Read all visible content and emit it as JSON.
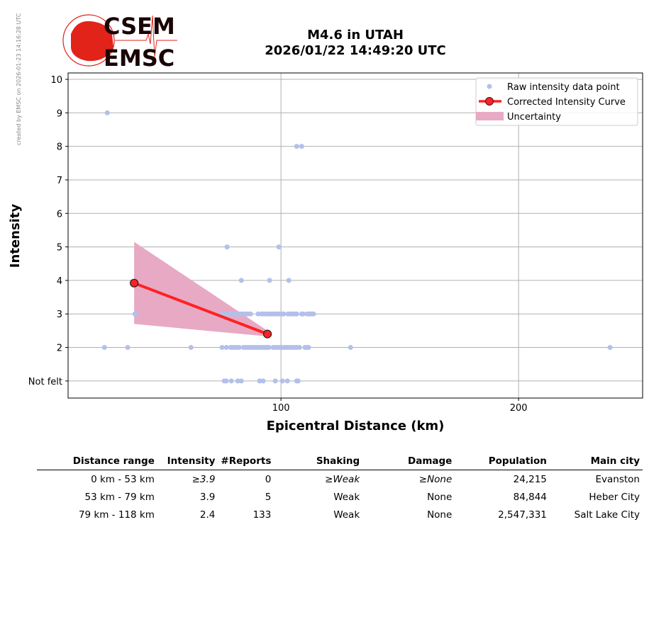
{
  "credit": "created by EMSC on 2026-01-23 14:16:28 UTC",
  "logo": {
    "top": "CSEM",
    "bottom": "EMSC"
  },
  "title": {
    "line1": "M4.6 in UTAH",
    "line2": "2026/01/22 14:49:20 UTC"
  },
  "chart_data": {
    "type": "scatter",
    "xlabel": "Epicentral Distance (km)",
    "ylabel": "Intensity",
    "xlim": [
      10.4,
      252.2
    ],
    "ylim": [
      0.49,
      10.19
    ],
    "xticks": [
      100,
      200
    ],
    "yticks": [
      {
        "v": 1,
        "label": "Not felt"
      },
      {
        "v": 2,
        "label": "2"
      },
      {
        "v": 3,
        "label": "3"
      },
      {
        "v": 4,
        "label": "4"
      },
      {
        "v": 5,
        "label": "5"
      },
      {
        "v": 6,
        "label": "6"
      },
      {
        "v": 7,
        "label": "7"
      },
      {
        "v": 8,
        "label": "8"
      },
      {
        "v": 9,
        "label": "9"
      },
      {
        "v": 10,
        "label": "10"
      }
    ],
    "grid": true,
    "legend_position": "top-right",
    "legend": [
      "Raw intensity data point",
      "Corrected Intensity Curve",
      "Uncertainty"
    ],
    "colors": {
      "raw": "#b3c0ea",
      "curve": "#ff2222",
      "uncertainty": "#e8a9c4"
    },
    "raw_points": [
      {
        "i": 9,
        "x": [
          26.9
        ]
      },
      {
        "i": 8,
        "x": [
          106.6,
          108.7
        ]
      },
      {
        "i": 5,
        "x": [
          77.3,
          99.1
        ]
      },
      {
        "i": 4,
        "x": [
          83.3,
          95.2,
          103.3
        ]
      },
      {
        "i": 3,
        "x": [
          38.5,
          39.1,
          75.2,
          76.1,
          77.0,
          77.9,
          78.8,
          79.7,
          80.6,
          81.5,
          82.4,
          83.3,
          84.2,
          85.1,
          86.0,
          87.2,
          90.4,
          91.9,
          92.8,
          94.0,
          94.9,
          95.8,
          96.7,
          97.6,
          98.5,
          99.4,
          100.3,
          101.2,
          103.0,
          103.9,
          104.8,
          105.7,
          106.6,
          108.7,
          109.3,
          111.0,
          111.9,
          112.8,
          113.7
        ]
      },
      {
        "i": 2,
        "x": [
          25.7,
          35.5,
          62.1,
          75.2,
          77.0,
          78.8,
          79.7,
          80.6,
          81.5,
          82.4,
          84.2,
          85.1,
          86.0,
          86.9,
          87.8,
          88.7,
          89.6,
          90.4,
          91.3,
          92.2,
          93.1,
          94.0,
          94.9,
          96.7,
          97.6,
          98.5,
          99.4,
          100.3,
          101.2,
          102.1,
          103.0,
          103.9,
          104.8,
          105.7,
          106.6,
          107.8,
          110.1,
          111.0,
          111.6,
          129.3,
          238.5
        ]
      },
      {
        "i": 1,
        "x": [
          76.1,
          77.0,
          79.1,
          81.8,
          83.3,
          91.0,
          92.5,
          97.6,
          100.6,
          102.7,
          106.6,
          107.2
        ]
      }
    ],
    "curve": [
      {
        "x": 38.2,
        "y": 3.92
      },
      {
        "x": 94.3,
        "y": 2.4
      }
    ],
    "uncertainty": {
      "x": [
        38.2,
        94.3
      ],
      "upper": [
        5.15,
        2.5
      ],
      "lower": [
        2.7,
        2.33
      ]
    }
  },
  "table": {
    "headers": [
      "Distance range",
      "Intensity",
      "#Reports",
      "Shaking",
      "Damage",
      "Population",
      "Main city"
    ],
    "rows": [
      [
        "0 km -   53 km",
        "≥3.9",
        "0",
        "≥Weak",
        "≥None",
        "24,215",
        "Evanston"
      ],
      [
        "53 km -   79 km",
        "3.9",
        "5",
        "Weak",
        "None",
        "84,844",
        "Heber City"
      ],
      [
        "79 km -  118 km",
        "2.4",
        "133",
        "Weak",
        "None",
        "2,547,331",
        "Salt Lake City"
      ]
    ]
  }
}
